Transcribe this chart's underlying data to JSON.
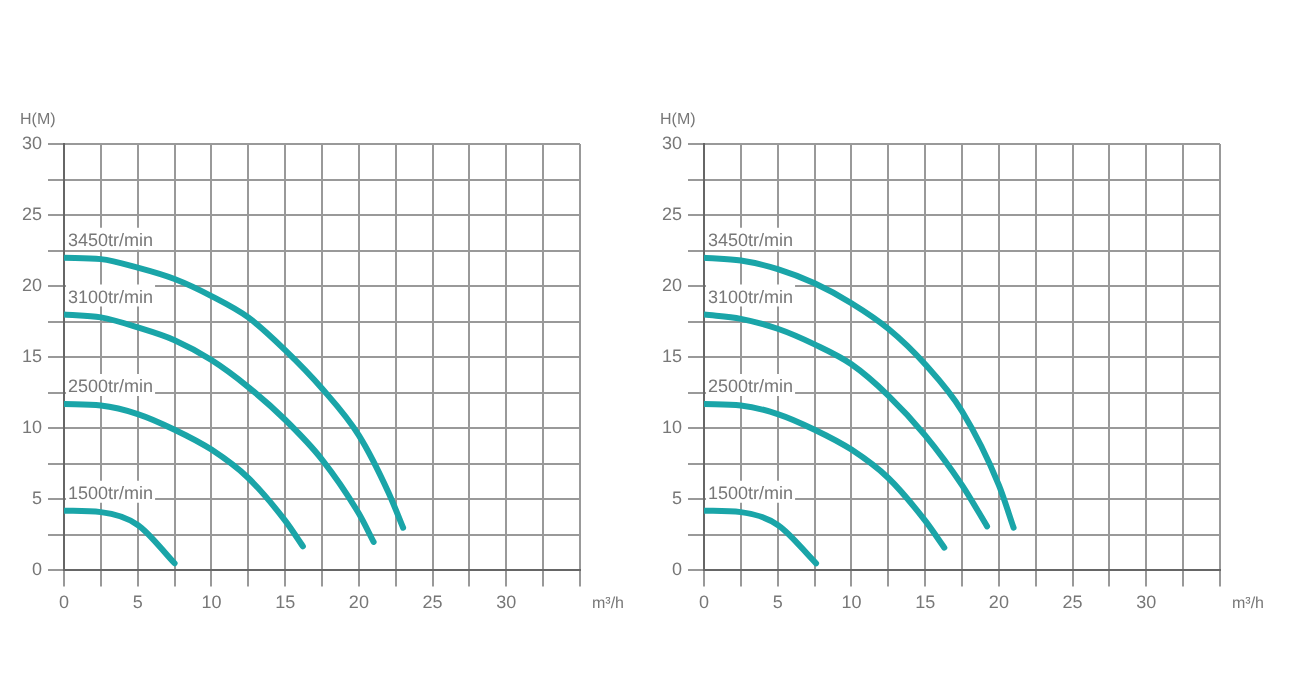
{
  "chart_data": [
    {
      "type": "line",
      "xlabel": "m³/h",
      "ylabel": "H(M)",
      "xlim": [
        0,
        35
      ],
      "ylim": [
        0,
        30
      ],
      "xticks": [
        0,
        {
          "value": 2.5,
          "label": null
        },
        5,
        {
          "value": 7.5,
          "label": null
        },
        10,
        {
          "value": 12.5,
          "label": null
        },
        15,
        {
          "value": 17.5,
          "label": null
        },
        20,
        {
          "value": 22.5,
          "label": null
        },
        25,
        {
          "value": 27.5,
          "label": null
        },
        30,
        {
          "value": 32.5,
          "label": null
        },
        {
          "value": 35,
          "label": null
        }
      ],
      "yticks": [
        0,
        {
          "value": 2.5,
          "label": null
        },
        5,
        {
          "value": 7.5,
          "label": null
        },
        10,
        {
          "value": 12.5,
          "label": null
        },
        15,
        {
          "value": 17.5,
          "label": null
        },
        20,
        {
          "value": 22.5,
          "label": null
        },
        25,
        {
          "value": 27.5,
          "label": null
        },
        30
      ],
      "grid": true,
      "legend": false,
      "marker": "none",
      "line_style": "solid",
      "series": [
        {
          "name": "3450tr/min",
          "color": "#1aa5a8",
          "x": [
            0,
            2.5,
            5,
            7.5,
            10,
            12.5,
            15,
            17.5,
            20,
            22,
            23
          ],
          "values": [
            22,
            21.9,
            21.3,
            20.5,
            19.3,
            17.8,
            15.5,
            12.8,
            9.5,
            5.5,
            3
          ]
        },
        {
          "name": "3100tr/min",
          "color": "#1aa5a8",
          "x": [
            0,
            2.5,
            5,
            7.5,
            10,
            12.5,
            15,
            17.5,
            20,
            21
          ],
          "values": [
            18,
            17.8,
            17.1,
            16.2,
            14.8,
            12.9,
            10.6,
            7.8,
            4,
            2
          ]
        },
        {
          "name": "2500tr/min",
          "color": "#1aa5a8",
          "x": [
            0,
            2.5,
            5,
            7.5,
            10,
            12.5,
            15,
            16.2
          ],
          "values": [
            11.7,
            11.6,
            11,
            9.9,
            8.5,
            6.5,
            3.5,
            1.7
          ]
        },
        {
          "name": "1500tr/min",
          "color": "#1aa5a8",
          "x": [
            0,
            2.5,
            5,
            7.5
          ],
          "values": [
            4.2,
            4.1,
            3.2,
            0.5
          ]
        }
      ]
    },
    {
      "type": "line",
      "xlabel": "m³/h",
      "ylabel": "H(M)",
      "xlim": [
        0,
        35
      ],
      "ylim": [
        0,
        30
      ],
      "xticks": [
        0,
        {
          "value": 2.5,
          "label": null
        },
        5,
        {
          "value": 7.5,
          "label": null
        },
        10,
        {
          "value": 12.5,
          "label": null
        },
        15,
        {
          "value": 17.5,
          "label": null
        },
        20,
        {
          "value": 22.5,
          "label": null
        },
        25,
        {
          "value": 27.5,
          "label": null
        },
        30,
        {
          "value": 32.5,
          "label": null
        },
        {
          "value": 35,
          "label": null
        }
      ],
      "yticks": [
        0,
        {
          "value": 2.5,
          "label": null
        },
        5,
        {
          "value": 7.5,
          "label": null
        },
        10,
        {
          "value": 12.5,
          "label": null
        },
        15,
        {
          "value": 17.5,
          "label": null
        },
        20,
        {
          "value": 22.5,
          "label": null
        },
        25,
        {
          "value": 27.5,
          "label": null
        },
        30
      ],
      "grid": true,
      "legend": false,
      "marker": "none",
      "line_style": "solid",
      "series": [
        {
          "name": "3450tr/min",
          "color": "#1aa5a8",
          "x": [
            0,
            2.5,
            5,
            7.5,
            10,
            12.5,
            15,
            17.5,
            20,
            21
          ],
          "values": [
            22,
            21.8,
            21.2,
            20.2,
            18.8,
            17,
            14.5,
            11.2,
            6,
            3
          ]
        },
        {
          "name": "3100tr/min",
          "color": "#1aa5a8",
          "x": [
            0,
            2.5,
            5,
            7.5,
            10,
            12.5,
            15,
            17.5,
            19.2
          ],
          "values": [
            18,
            17.7,
            17,
            15.9,
            14.5,
            12.3,
            9.5,
            6,
            3.1
          ]
        },
        {
          "name": "2500tr/min",
          "color": "#1aa5a8",
          "x": [
            0,
            2.5,
            5,
            7.5,
            10,
            12.5,
            15,
            16.3
          ],
          "values": [
            11.7,
            11.6,
            11,
            9.9,
            8.5,
            6.5,
            3.5,
            1.6
          ]
        },
        {
          "name": "1500tr/min",
          "color": "#1aa5a8",
          "x": [
            0,
            2.5,
            5,
            7.6
          ],
          "values": [
            4.2,
            4.1,
            3.2,
            0.5
          ]
        }
      ]
    }
  ]
}
